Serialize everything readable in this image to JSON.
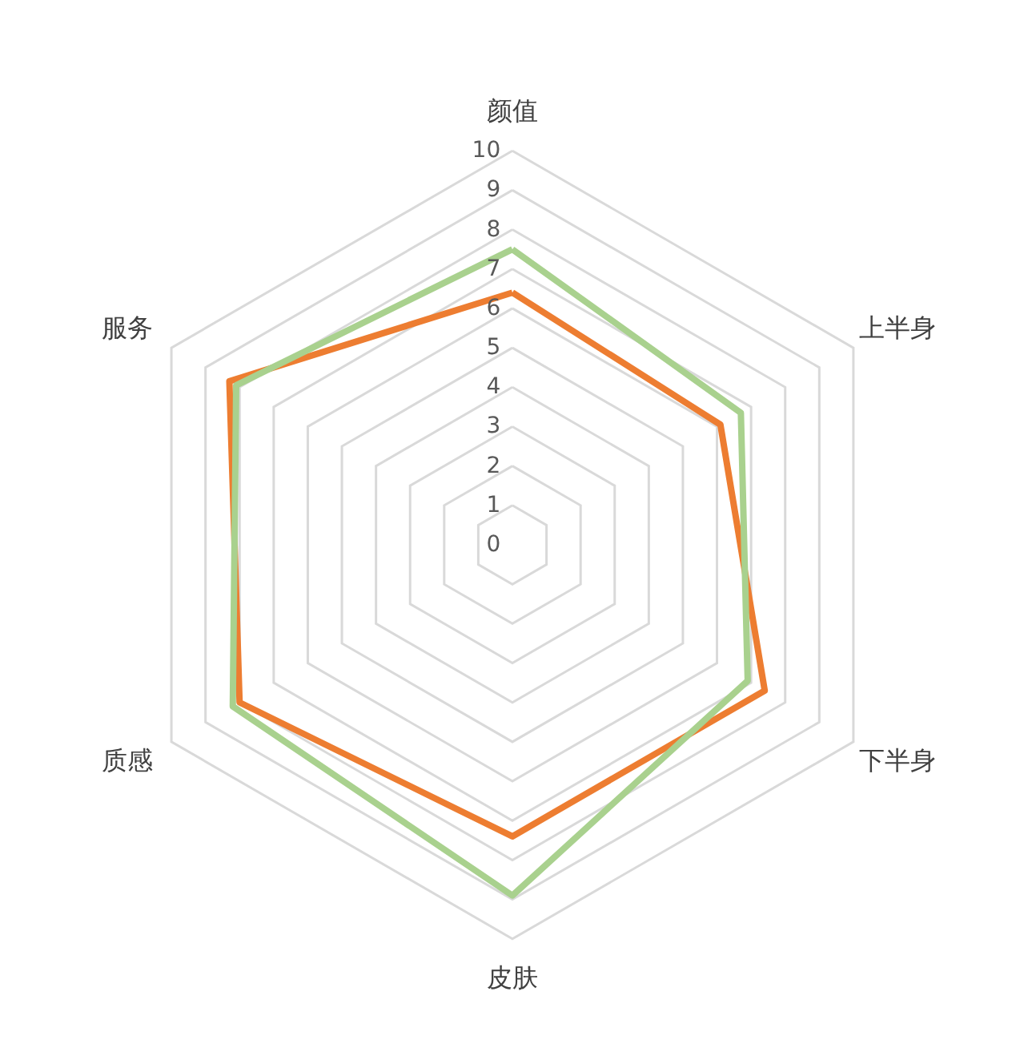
{
  "chart_data": {
    "type": "radar",
    "categories": [
      "颜值",
      "上半身",
      "下半身",
      "皮肤",
      "质感",
      "服务"
    ],
    "series": [
      {
        "color": "#ed7d31",
        "values": [
          6.4,
          6.1,
          7.4,
          7.4,
          8.0,
          8.3
        ]
      },
      {
        "color": "#a9d18e",
        "values": [
          7.5,
          6.7,
          6.9,
          8.9,
          8.2,
          8.1
        ]
      }
    ],
    "ylim": [
      0,
      10
    ],
    "yticks": [
      0,
      1,
      2,
      3,
      4,
      5,
      6,
      7,
      8,
      9,
      10
    ],
    "grid": true
  }
}
